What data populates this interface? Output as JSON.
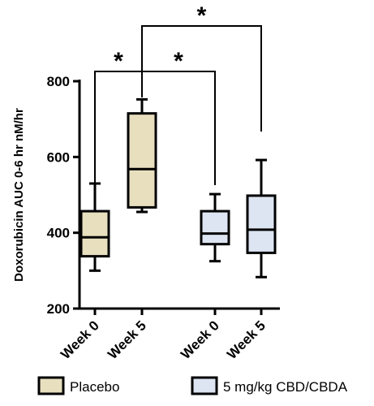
{
  "chart_data": {
    "type": "box",
    "ylabel": "Doxorubicin AUC 0-6 hr nM/hr",
    "xlabel": "",
    "ylim": [
      200,
      800
    ],
    "yticks": [
      200,
      400,
      600,
      800
    ],
    "categories": [
      "Week 0",
      "Week 5",
      "Week 0",
      "Week 5"
    ],
    "boxes": [
      {
        "category": "Week 0",
        "group": "Placebo",
        "min": 300,
        "q1": 338,
        "median": 388,
        "q3": 457,
        "max": 530
      },
      {
        "category": "Week 5",
        "group": "Placebo",
        "min": 455,
        "q1": 467,
        "median": 568,
        "q3": 715,
        "max": 752
      },
      {
        "category": "Week 0",
        "group": "5 mg/kg CBD/CBDA",
        "min": 325,
        "q1": 370,
        "median": 398,
        "q3": 457,
        "max": 502
      },
      {
        "category": "Week 5",
        "group": "5 mg/kg CBD/CBDA",
        "min": 283,
        "q1": 347,
        "median": 408,
        "q3": 498,
        "max": 592
      }
    ],
    "legend": {
      "position": "bottom",
      "entries": [
        {
          "label": "Placebo",
          "color": "#e8dfbf"
        },
        {
          "label": "5 mg/kg CBD/CBDA",
          "color": "#dde5f2"
        }
      ]
    },
    "significance": [
      {
        "from": 0,
        "to": 1,
        "label": "*"
      },
      {
        "from": 1,
        "to": 2,
        "label": "*"
      },
      {
        "from": 1,
        "to": 3,
        "label": "*"
      }
    ],
    "grid": false
  }
}
